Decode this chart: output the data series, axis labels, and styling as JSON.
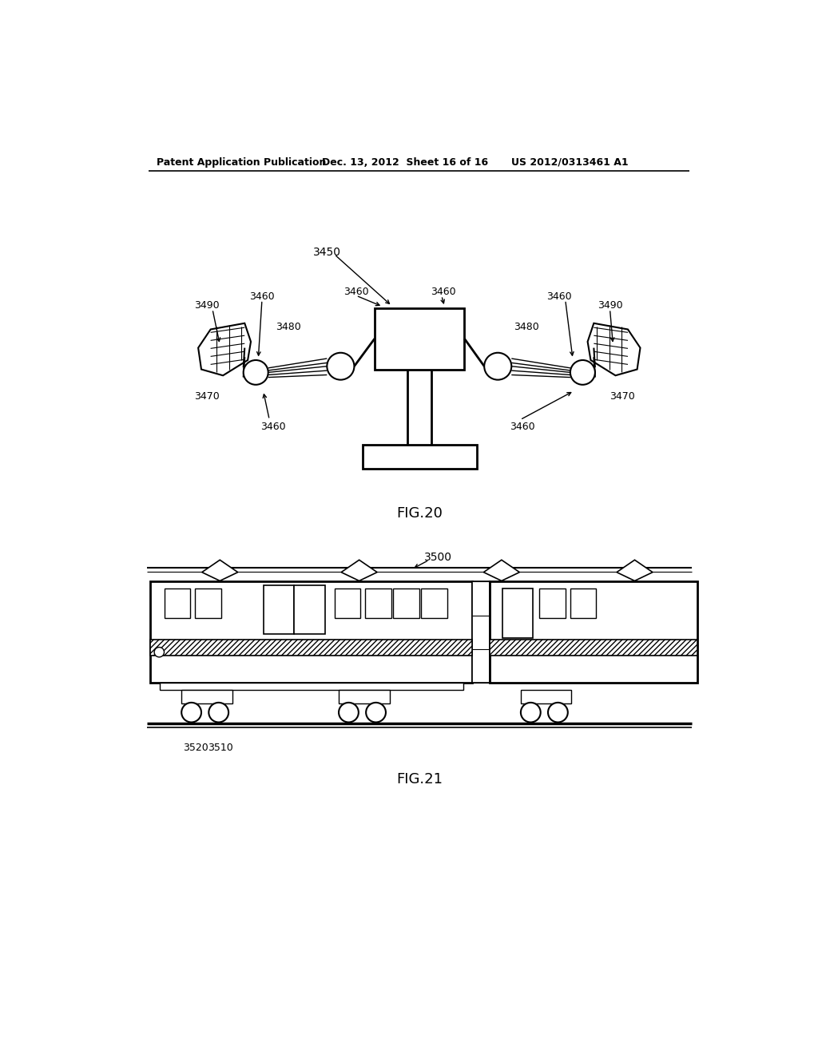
{
  "background_color": "#ffffff",
  "header_left": "Patent Application Publication",
  "header_center": "Dec. 13, 2012  Sheet 16 of 16",
  "header_right": "US 2012/0313461 A1",
  "fig20_label": "FIG.20",
  "fig21_label": "FIG.21"
}
